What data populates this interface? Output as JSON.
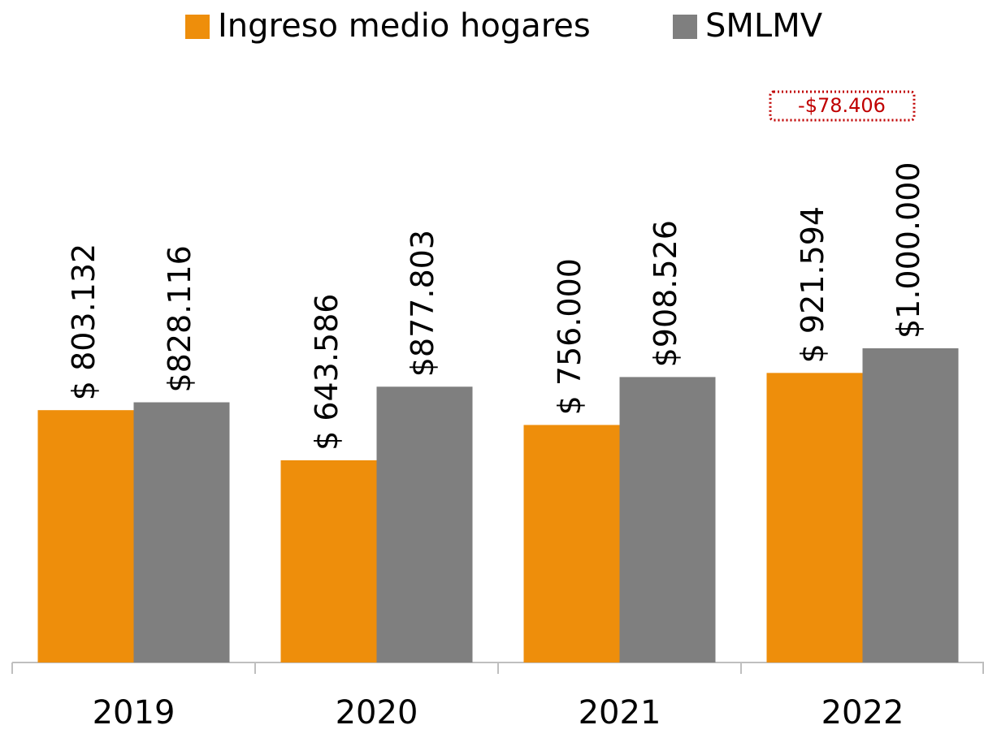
{
  "chart_data": {
    "type": "bar",
    "categories": [
      "2019",
      "2020",
      "2021",
      "2022"
    ],
    "series": [
      {
        "name": "Ingreso medio hogares",
        "color": "#ee8e0b",
        "values": [
          803132,
          643586,
          756000,
          921594
        ],
        "value_labels": [
          "$ 803.132",
          "$ 643.586",
          "$ 756.000",
          "$ 921.594"
        ]
      },
      {
        "name": "SMLMV",
        "color": "#7f7f7f",
        "values": [
          828116,
          877803,
          908526,
          1000000
        ],
        "value_labels": [
          "$828.116",
          "$877.803",
          "$908.526",
          "$1.000.000"
        ]
      }
    ],
    "ylim": [
      0,
      2000000
    ],
    "annotation": "-$78.406",
    "legend": "top"
  }
}
